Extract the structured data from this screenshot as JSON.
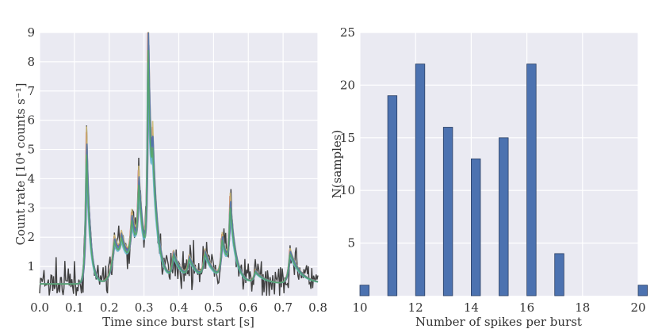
{
  "chart_data": [
    {
      "type": "line",
      "xlabel": "Time since burst start [s]",
      "ylabel": "Count rate [10⁴ counts s⁻¹]",
      "xlim": [
        0.0,
        0.8
      ],
      "ylim": [
        0,
        9
      ],
      "xticks": [
        "0.0",
        "0.1",
        "0.2",
        "0.3",
        "0.4",
        "0.5",
        "0.6",
        "0.7",
        "0.8"
      ],
      "yticks": [
        "1",
        "2",
        "3",
        "4",
        "5",
        "6",
        "7",
        "8",
        "9"
      ],
      "grid": true,
      "data_color": "#404040",
      "model_colors": [
        "#4c72b0",
        "#55a868",
        "#c44e52",
        "#8172b2",
        "#ccb974",
        "#64b5cd"
      ],
      "baseline": 0.4,
      "data_noise": 0.45,
      "data_step": 0.0025,
      "spikes": [
        {
          "t": 0.135,
          "amp": 4.9,
          "rise": 0.004,
          "decay": 0.01
        },
        {
          "t": 0.215,
          "amp": 1.5,
          "rise": 0.01,
          "decay": 0.03
        },
        {
          "t": 0.235,
          "amp": 0.9,
          "rise": 0.006,
          "decay": 0.03
        },
        {
          "t": 0.265,
          "amp": 1.7,
          "rise": 0.006,
          "decay": 0.025
        },
        {
          "t": 0.285,
          "amp": 2.6,
          "rise": 0.004,
          "decay": 0.015
        },
        {
          "t": 0.312,
          "amp": 7.9,
          "rise": 0.003,
          "decay": 0.01
        },
        {
          "t": 0.325,
          "amp": 2.5,
          "rise": 0.004,
          "decay": 0.02
        },
        {
          "t": 0.385,
          "amp": 0.9,
          "rise": 0.006,
          "decay": 0.03
        },
        {
          "t": 0.43,
          "amp": 0.7,
          "rise": 0.006,
          "decay": 0.03
        },
        {
          "t": 0.475,
          "amp": 0.9,
          "rise": 0.006,
          "decay": 0.03
        },
        {
          "t": 0.525,
          "amp": 1.4,
          "rise": 0.005,
          "decay": 0.02
        },
        {
          "t": 0.548,
          "amp": 2.3,
          "rise": 0.004,
          "decay": 0.015
        },
        {
          "t": 0.62,
          "amp": 0.4,
          "rise": 0.006,
          "decay": 0.03
        },
        {
          "t": 0.72,
          "amp": 1.1,
          "rise": 0.006,
          "decay": 0.03
        }
      ]
    },
    {
      "type": "bar",
      "xlabel": "Number of spikes per burst",
      "ylabel": "N(samples)",
      "xlim": [
        10,
        20
      ],
      "ylim": [
        0,
        25
      ],
      "xticks": [
        "10",
        "12",
        "14",
        "16",
        "18",
        "20"
      ],
      "yticks": [
        "5",
        "10",
        "15",
        "20",
        "25"
      ],
      "grid": true,
      "bar_color": "#4c72b0",
      "bin_width": 0.33,
      "bars": [
        {
          "x": 10,
          "value": 1
        },
        {
          "x": 11,
          "value": 19
        },
        {
          "x": 12,
          "value": 22
        },
        {
          "x": 13,
          "value": 16
        },
        {
          "x": 14,
          "value": 13
        },
        {
          "x": 15,
          "value": 15
        },
        {
          "x": 16,
          "value": 22
        },
        {
          "x": 17,
          "value": 4
        },
        {
          "x": 20,
          "value": 1
        }
      ]
    }
  ]
}
